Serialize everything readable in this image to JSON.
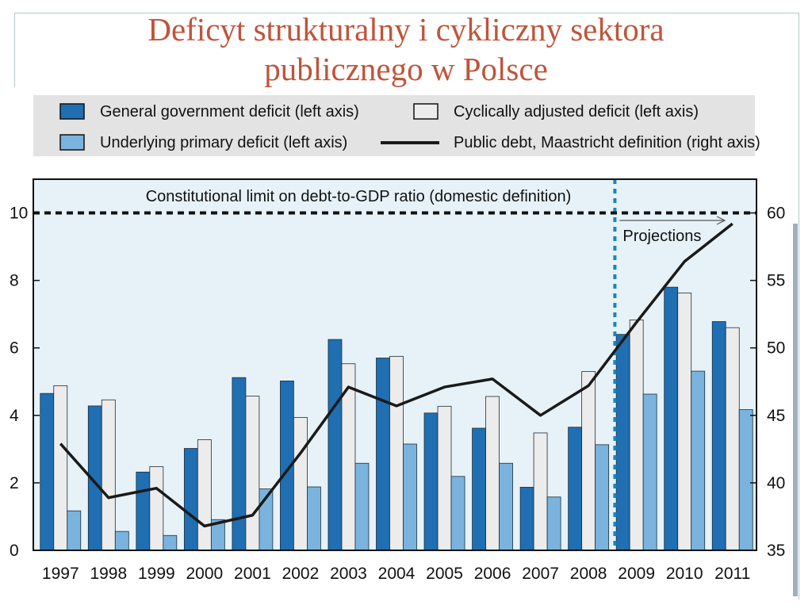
{
  "slide": {
    "title_line1": "Deficyt strukturalny i cykliczny sektora",
    "title_line2": "publicznego w Polsce"
  },
  "colors": {
    "title": "#c0543a",
    "general_government_deficit": "#1f6fb2",
    "cyclically_adjusted_deficit": "#ececec",
    "underlying_primary_deficit": "#7ab3dd",
    "public_debt": "#1a1a1a",
    "plot_background": "#e6f2f8",
    "legend_background": "#e3e3e3",
    "constitutional_limit": "#111111",
    "projection_marker": "#1a86b8"
  },
  "chart_data": {
    "type": "bar",
    "categories": [
      "1997",
      "1998",
      "1999",
      "2000",
      "2001",
      "2002",
      "2003",
      "2004",
      "2005",
      "2006",
      "2007",
      "2008",
      "2009",
      "2010",
      "2011"
    ],
    "series": [
      {
        "name": "General government deficit (left axis)",
        "axis": "left",
        "type": "bar",
        "values": [
          4.65,
          4.28,
          2.32,
          3.02,
          5.12,
          5.02,
          6.25,
          5.7,
          4.07,
          3.62,
          1.87,
          3.65,
          6.4,
          7.8,
          6.78
        ]
      },
      {
        "name": "Cyclically adjusted deficit (left axis)",
        "axis": "left",
        "type": "bar",
        "values": [
          4.88,
          4.46,
          2.48,
          3.28,
          4.57,
          3.94,
          5.53,
          5.75,
          4.27,
          4.56,
          3.48,
          5.3,
          6.83,
          7.63,
          6.6
        ]
      },
      {
        "name": "Underlying primary deficit (left axis)",
        "axis": "left",
        "type": "bar",
        "values": [
          1.17,
          0.56,
          0.44,
          0.91,
          1.82,
          1.88,
          2.58,
          3.15,
          2.19,
          2.58,
          1.58,
          3.13,
          4.63,
          5.31,
          4.17
        ]
      },
      {
        "name": "Public debt, Maastricht definition (right axis)",
        "axis": "right",
        "type": "line",
        "values": [
          42.9,
          38.9,
          39.6,
          36.8,
          37.6,
          42.2,
          47.1,
          45.7,
          47.1,
          47.7,
          45.0,
          47.2,
          51.9,
          56.4,
          59.2
        ]
      }
    ],
    "y_left": {
      "ylim": [
        0,
        11
      ],
      "ticks": [
        0,
        2,
        4,
        6,
        8,
        10
      ]
    },
    "y_right": {
      "ylim": [
        35,
        62.5
      ],
      "ticks": [
        35,
        40,
        45,
        50,
        55,
        60
      ]
    },
    "reference_line": {
      "label": "Constitutional limit on debt-to-GDP ratio (domestic definition)",
      "value": 10,
      "axis": "left",
      "style": "dashed"
    },
    "projection": {
      "label": "Projections",
      "start_between": [
        "2008",
        "2009"
      ]
    },
    "legend_position": "top",
    "grid": false
  }
}
